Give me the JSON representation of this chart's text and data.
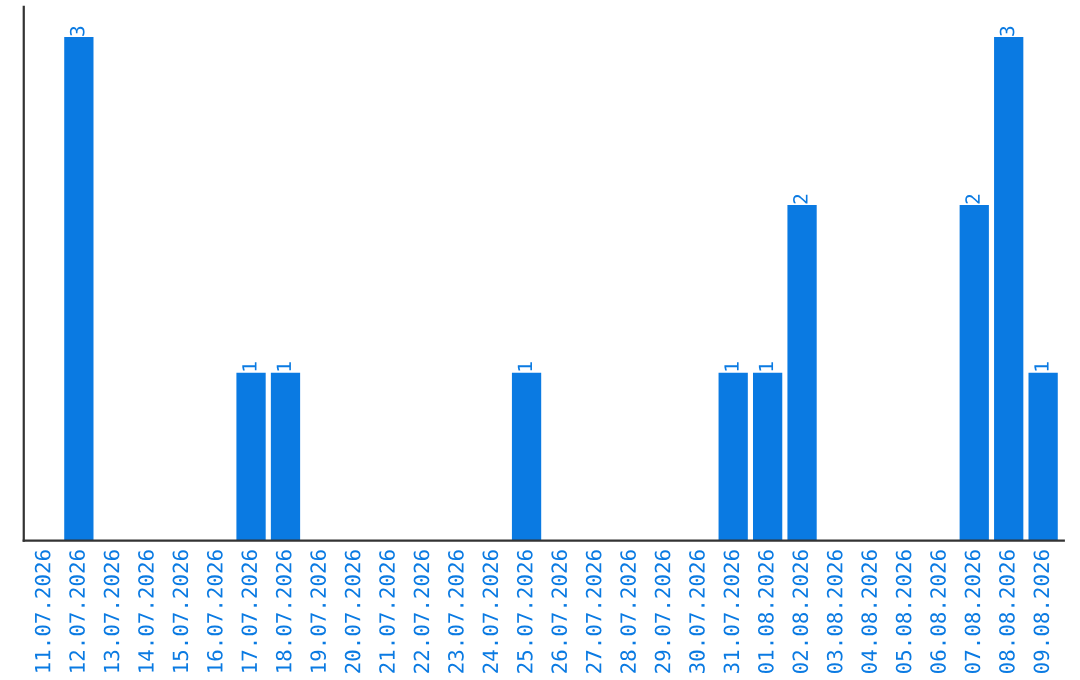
{
  "chart_data": {
    "type": "bar",
    "categories": [
      "11.07.2026",
      "12.07.2026",
      "13.07.2026",
      "14.07.2026",
      "15.07.2026",
      "16.07.2026",
      "17.07.2026",
      "18.07.2026",
      "19.07.2026",
      "20.07.2026",
      "21.07.2026",
      "22.07.2026",
      "23.07.2026",
      "24.07.2026",
      "25.07.2026",
      "26.07.2026",
      "27.07.2026",
      "28.07.2026",
      "29.07.2026",
      "30.07.2026",
      "31.07.2026",
      "01.08.2026",
      "02.08.2026",
      "03.08.2026",
      "04.08.2026",
      "05.08.2026",
      "06.08.2026",
      "07.08.2026",
      "08.08.2026",
      "09.08.2026"
    ],
    "values": [
      0,
      3,
      0,
      0,
      0,
      0,
      1,
      1,
      0,
      0,
      0,
      0,
      0,
      0,
      1,
      0,
      0,
      0,
      0,
      0,
      1,
      1,
      2,
      0,
      0,
      0,
      0,
      2,
      3,
      1
    ],
    "color": "#0a7ae2",
    "value_labels": [
      null,
      "3",
      null,
      null,
      null,
      null,
      "1",
      "1",
      null,
      null,
      null,
      null,
      null,
      null,
      "1",
      null,
      null,
      null,
      null,
      null,
      "1",
      "1",
      "2",
      null,
      null,
      null,
      null,
      "2",
      "3",
      "1"
    ],
    "tick_labels": "x",
    "grid": false,
    "legend": false
  }
}
